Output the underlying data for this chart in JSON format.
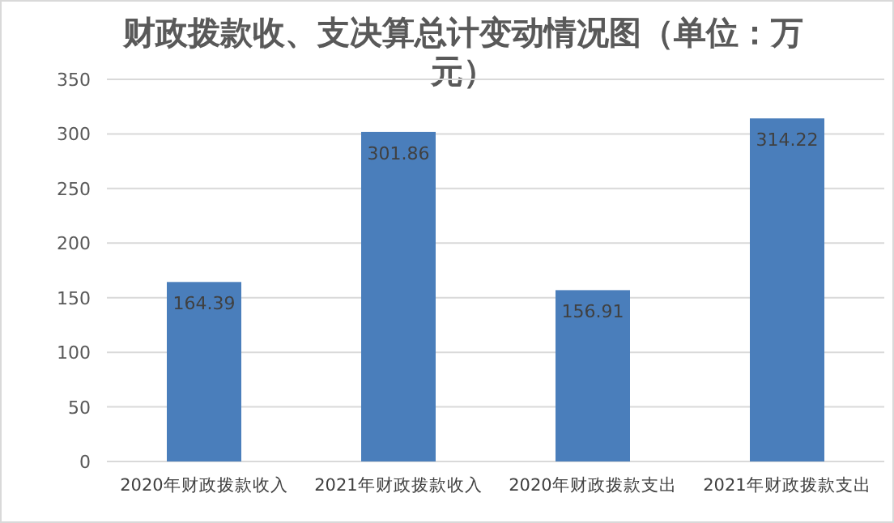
{
  "chart_data": {
    "type": "bar",
    "title": "财政拨款收、支决算总计变动情况图（单位：万元）",
    "categories": [
      "2020年财政拨款收入",
      "2021年财政拨款收入",
      "2020年财政拨款支出",
      "2021年财政拨款支出"
    ],
    "values": [
      164.39,
      301.86,
      156.91,
      314.22
    ],
    "color": "#4a7ebb",
    "ylim": [
      0,
      350
    ],
    "yticks": [
      0,
      50,
      100,
      150,
      200,
      250,
      300,
      350
    ],
    "grid": "y",
    "data_labels": true
  }
}
